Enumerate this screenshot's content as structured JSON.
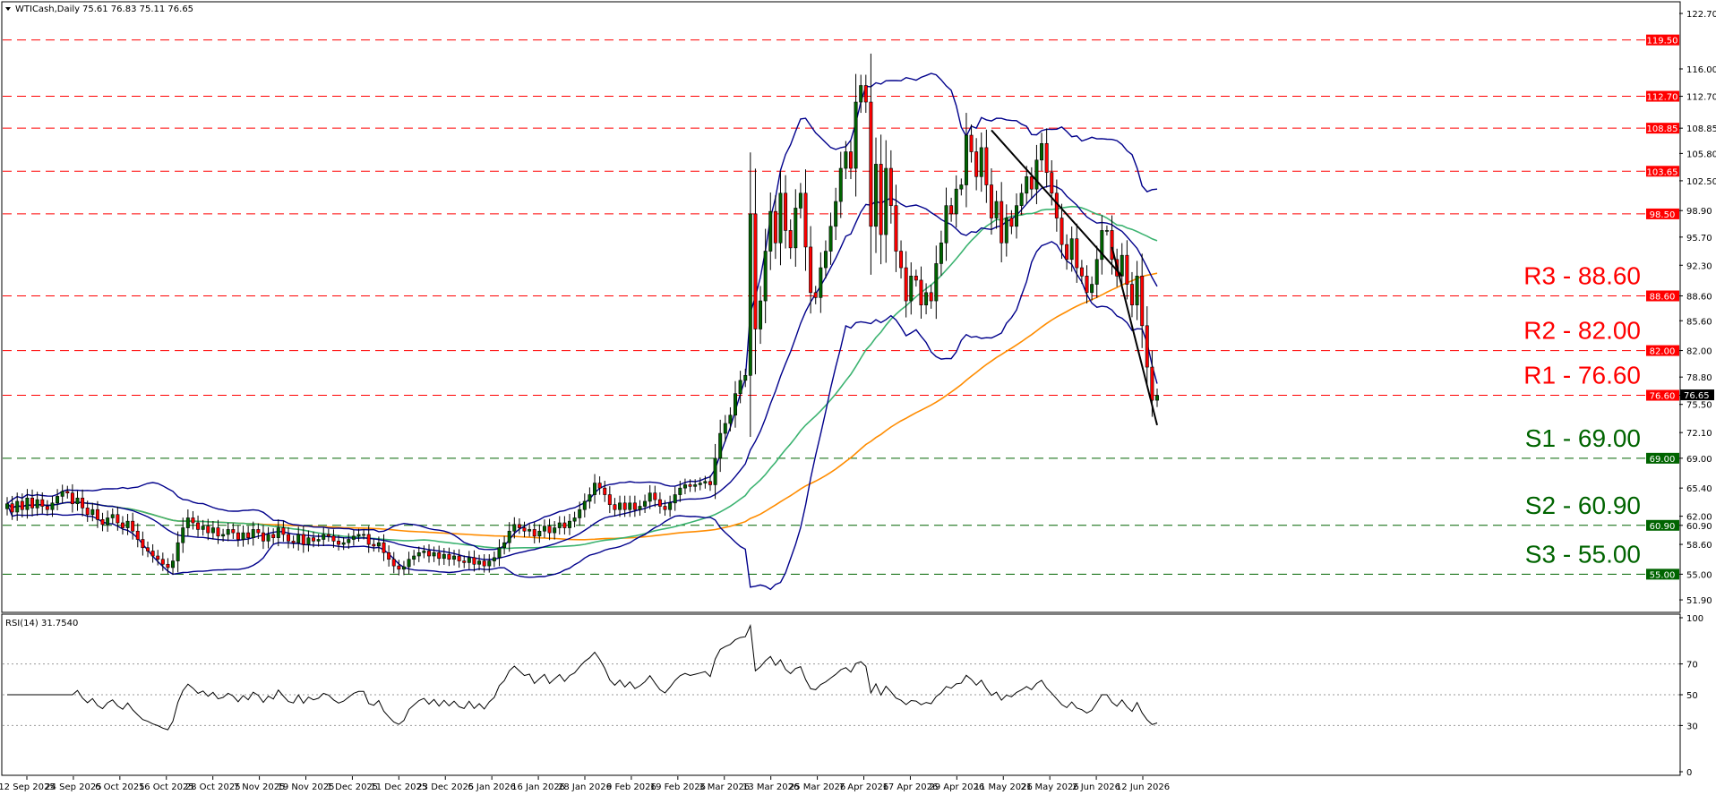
{
  "header": {
    "symbol_label": "WTICash,Daily",
    "ohlc_values": "75.61 76.83 75.11 76.65",
    "indicator_label": "RSI(14) 31.7540"
  },
  "colors": {
    "resistance": "#ff0000",
    "support": "#006400",
    "bollinger": "#00008b",
    "ma_green": "#3cb371",
    "ma_orange": "#ff8c00",
    "candle_up": "#006400",
    "candle_down": "#ff0000",
    "trendline": "#000000",
    "rsi_line": "#000000"
  },
  "chart_data": {
    "type": "candlestick",
    "y_range": [
      50.5,
      124.0
    ],
    "y_ticks": [
      "122.70",
      "116.00",
      "112.70",
      "108.85",
      "105.80",
      "102.50",
      "98.90",
      "95.70",
      "92.30",
      "88.60",
      "85.60",
      "82.00",
      "78.80",
      "76.60",
      "75.50",
      "72.10",
      "69.00",
      "65.40",
      "62.00",
      "60.90",
      "58.60",
      "55.00",
      "51.90"
    ],
    "x_ticks": [
      "12 Sep 2025",
      "24 Sep 2025",
      "6 Oct 2025",
      "16 Oct 2025",
      "28 Oct 2025",
      "7 Nov 2025",
      "19 Nov 2025",
      "1 Dec 2025",
      "11 Dec 2025",
      "23 Dec 2025",
      "6 Jan 2026",
      "16 Jan 2026",
      "28 Jan 2026",
      "9 Feb 2026",
      "19 Feb 2026",
      "3 Mar 2026",
      "13 Mar 2026",
      "25 Mar 2026",
      "7 Apr 2026",
      "17 Apr 2026",
      "29 Apr 2026",
      "11 May 2026",
      "21 May 2026",
      "2 Jun 2026",
      "12 Jun 2026"
    ],
    "levels": [
      {
        "value": 119.5,
        "tag": "119.50",
        "kind": "resistance",
        "label": ""
      },
      {
        "value": 112.7,
        "tag": "112.70",
        "kind": "resistance",
        "label": ""
      },
      {
        "value": 108.85,
        "tag": "108.85",
        "kind": "resistance",
        "label": ""
      },
      {
        "value": 103.65,
        "tag": "103.65",
        "kind": "resistance",
        "label": ""
      },
      {
        "value": 98.5,
        "tag": "98.50",
        "kind": "resistance",
        "label": ""
      },
      {
        "value": 88.6,
        "tag": "88.60",
        "kind": "resistance",
        "label": "R3 - 88.60"
      },
      {
        "value": 82.0,
        "tag": "82.00",
        "kind": "resistance",
        "label": "R2 - 82.00"
      },
      {
        "value": 76.6,
        "tag": "76.60",
        "kind": "resistance",
        "label": "R1 - 76.60"
      },
      {
        "value": 69.0,
        "tag": "69.00",
        "kind": "support",
        "label": "S1 - 69.00"
      },
      {
        "value": 60.9,
        "tag": "60.90",
        "kind": "support",
        "label": "S2 - 60.90"
      },
      {
        "value": 55.0,
        "tag": "55.00",
        "kind": "support",
        "label": "S3 - 55.00"
      }
    ],
    "current_price_tag": "76.65",
    "close_series": [
      63.5,
      62.5,
      63.8,
      62.8,
      64.2,
      63.0,
      64.0,
      63.2,
      62.8,
      63.6,
      64.4,
      65.0,
      64.8,
      63.5,
      64.2,
      63.0,
      62.2,
      62.8,
      61.6,
      61.0,
      61.8,
      62.2,
      61.2,
      60.6,
      61.4,
      60.2,
      59.2,
      58.2,
      57.8,
      57.2,
      56.8,
      56.2,
      55.8,
      56.6,
      58.8,
      60.6,
      61.8,
      61.2,
      60.4,
      60.8,
      60.0,
      60.6,
      59.6,
      59.8,
      60.4,
      60.0,
      59.2,
      60.0,
      59.4,
      60.4,
      60.0,
      59.0,
      59.8,
      59.4,
      60.6,
      59.8,
      59.0,
      58.8,
      59.8,
      58.6,
      59.4,
      59.0,
      59.2,
      59.8,
      59.6,
      59.0,
      58.6,
      58.8,
      59.2,
      59.6,
      59.8,
      59.8,
      58.6,
      58.4,
      58.8,
      57.6,
      56.8,
      56.0,
      55.6,
      55.9,
      56.8,
      57.2,
      57.6,
      57.8,
      57.2,
      57.6,
      56.9,
      57.4,
      56.8,
      57.2,
      56.6,
      56.4,
      57.0,
      56.2,
      56.6,
      56.0,
      56.6,
      57.0,
      58.2,
      58.8,
      60.2,
      61.0,
      60.6,
      60.2,
      60.4,
      59.6,
      60.2,
      60.8,
      60.0,
      60.6,
      61.2,
      60.6,
      61.4,
      61.8,
      62.8,
      63.8,
      64.6,
      66.0,
      65.4,
      64.6,
      63.4,
      62.8,
      63.6,
      62.8,
      63.6,
      62.8,
      63.2,
      63.8,
      64.8,
      64.0,
      63.2,
      62.8,
      63.6,
      64.6,
      65.4,
      65.8,
      65.6,
      65.8,
      66.0,
      66.2,
      65.8,
      69.0,
      72.0,
      73.2,
      74.2,
      76.8,
      78.4,
      79.0,
      98.5,
      84.6,
      88.0,
      94.0,
      98.8,
      95.0,
      101.0,
      96.5,
      94.4,
      99.2,
      101.0,
      94.5,
      89.0,
      88.4,
      92.0,
      94.0,
      97.0,
      100.0,
      104.0,
      106.0,
      104.0,
      112.0,
      114.0,
      112.0,
      97.0,
      104.5,
      96.0,
      104.0,
      99.5,
      94.0,
      92.0,
      88.0,
      91.0,
      90.5,
      87.5,
      89.0,
      88.0,
      92.5,
      95.0,
      99.5,
      98.5,
      101.5,
      102.0,
      108.0,
      106.0,
      103.0,
      106.5,
      102.0,
      98.0,
      100.0,
      95.0,
      98.0,
      97.0,
      99.5,
      101.0,
      103.0,
      101.5,
      105.0,
      107.0,
      103.5,
      101.0,
      98.0,
      94.8,
      93.0,
      95.5,
      92.0,
      91.0,
      89.0,
      90.0,
      93.0,
      96.5,
      96.5,
      93.0,
      91.0,
      93.5,
      90.0,
      87.5,
      91.0,
      85.0,
      80.0,
      76.0,
      76.6
    ]
  }
}
